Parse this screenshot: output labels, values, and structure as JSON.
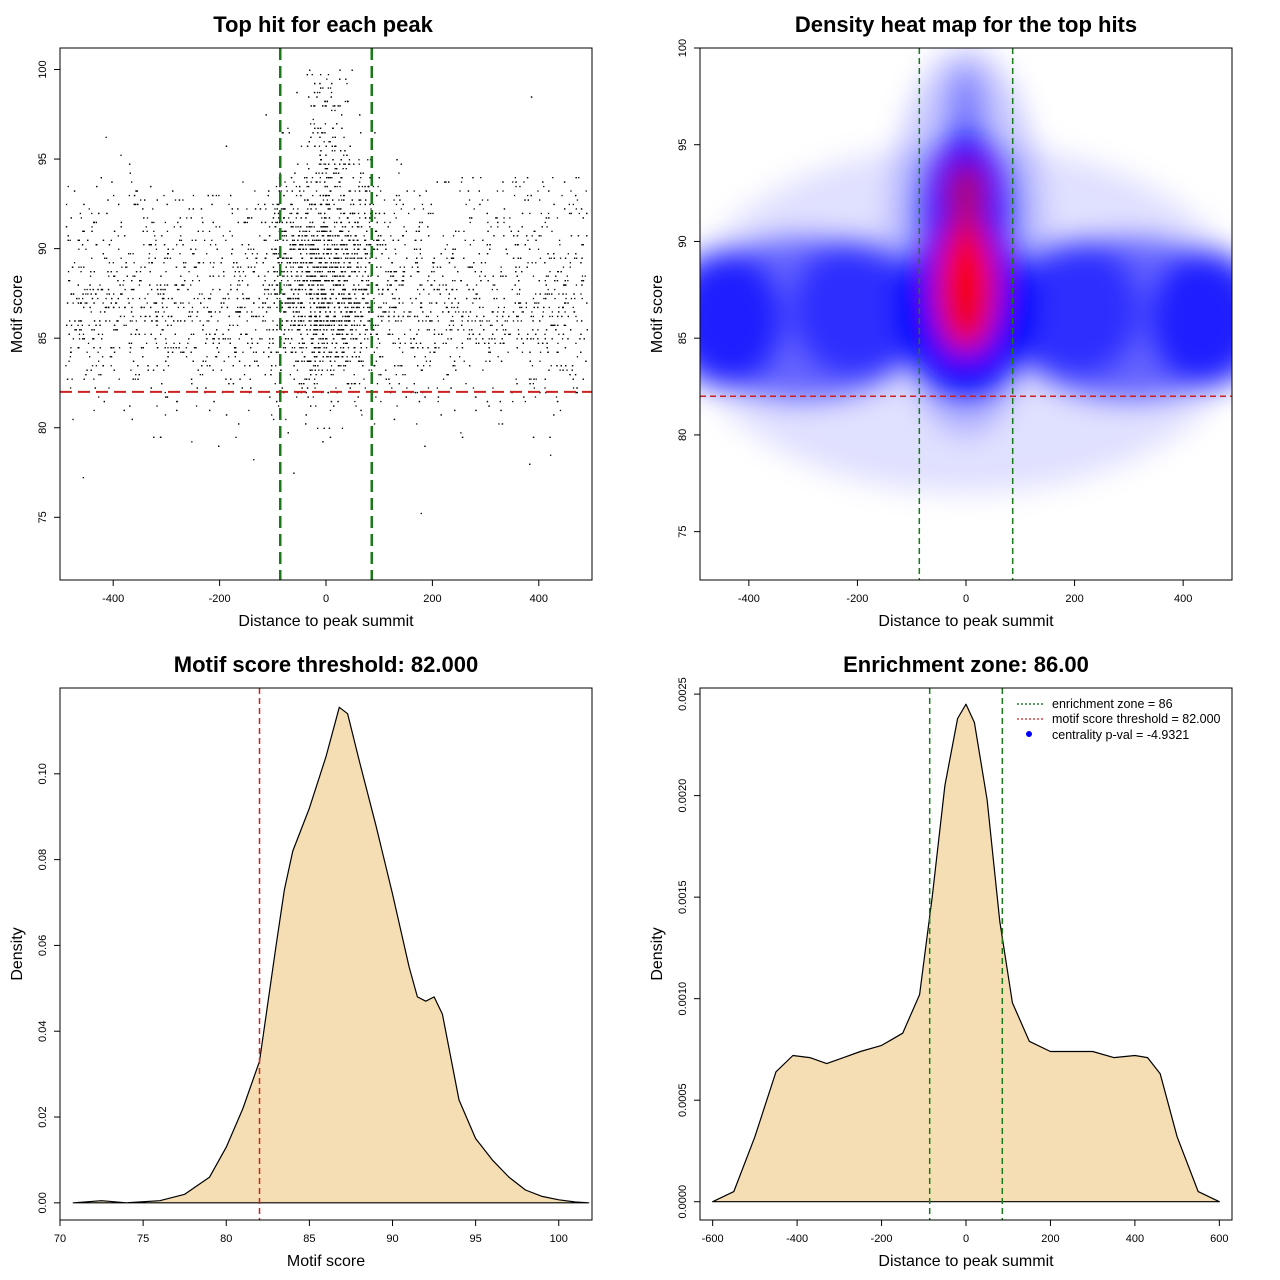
{
  "chart_data": [
    {
      "type": "scatter",
      "title": "Top hit for each peak",
      "xlabel": "Distance to peak summit",
      "ylabel": "Motif score",
      "xlim": [
        -500,
        500
      ],
      "ylim": [
        71.5,
        101.2
      ],
      "x_ticks": [
        -400,
        -200,
        0,
        200,
        400
      ],
      "y_ticks": [
        75,
        80,
        85,
        90,
        95,
        100
      ],
      "threshold_y": 82,
      "zone_x": [
        -86,
        86
      ],
      "point_count_estimate": 5000,
      "distribution": "dense band around motif score 84-89 across the full distance range, with a denser vertical column near distance 0 reaching up to 100"
    },
    {
      "type": "heatmap",
      "title": "Density heat map for the top hits",
      "xlabel": "Distance to peak summit",
      "ylabel": "Motif score",
      "xlim": [
        -490,
        490
      ],
      "ylim": [
        72.5,
        100
      ],
      "x_ticks": [
        -400,
        -200,
        0,
        200,
        400
      ],
      "y_ticks": [
        75,
        80,
        85,
        90,
        95,
        100
      ],
      "threshold_y": 82,
      "zone_x": [
        -86,
        86
      ],
      "colors": [
        "#ffffff",
        "#0000ff",
        "#ff0000"
      ],
      "hotspots": [
        {
          "x": 0,
          "y": 87.5,
          "level": "highest"
        },
        {
          "x": 0,
          "y": 92.5,
          "level": "high"
        },
        {
          "x": -450,
          "y": 86,
          "level": "medium"
        },
        {
          "x": 450,
          "y": 86,
          "level": "medium"
        }
      ]
    },
    {
      "type": "area",
      "title": "Motif score threshold: 82.000",
      "xlabel": "Motif score",
      "ylabel": "Density",
      "xlim": [
        70,
        102
      ],
      "ylim": [
        -0.004,
        0.12
      ],
      "x_ticks": [
        70,
        75,
        80,
        85,
        90,
        95,
        100
      ],
      "y_ticks": [
        0.0,
        0.02,
        0.04,
        0.06,
        0.08,
        0.1
      ],
      "y_tick_labels": [
        "0.00",
        "0.02",
        "0.04",
        "0.06",
        "0.08",
        "0.10"
      ],
      "threshold_x": 82,
      "fill": "#f5deb3",
      "points": [
        [
          70.8,
          0.0
        ],
        [
          72.5,
          0.0005
        ],
        [
          74,
          0.0
        ],
        [
          76,
          0.0005
        ],
        [
          77.5,
          0.002
        ],
        [
          79,
          0.006
        ],
        [
          80,
          0.013
        ],
        [
          81,
          0.022
        ],
        [
          82,
          0.033
        ],
        [
          83,
          0.06
        ],
        [
          83.5,
          0.073
        ],
        [
          84,
          0.082
        ],
        [
          85,
          0.092
        ],
        [
          86,
          0.104
        ],
        [
          86.8,
          0.1155
        ],
        [
          87.3,
          0.114
        ],
        [
          88,
          0.103
        ],
        [
          89,
          0.088
        ],
        [
          90,
          0.072
        ],
        [
          91,
          0.055
        ],
        [
          91.5,
          0.048
        ],
        [
          92,
          0.047
        ],
        [
          92.5,
          0.048
        ],
        [
          93,
          0.044
        ],
        [
          94,
          0.024
        ],
        [
          95,
          0.015
        ],
        [
          96,
          0.01
        ],
        [
          97,
          0.006
        ],
        [
          98,
          0.003
        ],
        [
          99,
          0.0015
        ],
        [
          100,
          0.0007
        ],
        [
          101,
          0.0002
        ],
        [
          101.8,
          0.0
        ]
      ]
    },
    {
      "type": "area",
      "title": "Enrichment zone: 86.00",
      "xlabel": "Distance to peak summit",
      "ylabel": "Density",
      "xlim": [
        -630,
        630
      ],
      "ylim": [
        -9e-05,
        0.00253
      ],
      "x_ticks": [
        -600,
        -400,
        -200,
        0,
        200,
        400,
        600
      ],
      "y_ticks": [
        0.0,
        0.0005,
        0.001,
        0.0015,
        0.002,
        0.0025
      ],
      "y_tick_labels": [
        "0.0000",
        "0.0005",
        "0.0010",
        "0.0015",
        "0.0020",
        "0.0025"
      ],
      "zone_x": [
        -86,
        86
      ],
      "fill": "#f5deb3",
      "legend_position": "top-right",
      "legend": [
        {
          "label": "enrichment zone = 86",
          "color": "#006400",
          "style": "dotted"
        },
        {
          "label": "motif score threshold = 82.000",
          "color": "#cc2222",
          "style": "dotted"
        },
        {
          "label": "centrality p-val = -4.9321",
          "color": "#0000ff",
          "style": "point"
        }
      ],
      "points": [
        [
          -600,
          0.0
        ],
        [
          -550,
          5e-05
        ],
        [
          -500,
          0.00032
        ],
        [
          -450,
          0.00064
        ],
        [
          -410,
          0.00072
        ],
        [
          -370,
          0.00071
        ],
        [
          -330,
          0.00068
        ],
        [
          -290,
          0.00071
        ],
        [
          -250,
          0.00074
        ],
        [
          -200,
          0.00077
        ],
        [
          -150,
          0.00083
        ],
        [
          -110,
          0.00102
        ],
        [
          -80,
          0.0015
        ],
        [
          -50,
          0.00205
        ],
        [
          -20,
          0.00238
        ],
        [
          0,
          0.00245
        ],
        [
          20,
          0.00236
        ],
        [
          50,
          0.00198
        ],
        [
          80,
          0.00138
        ],
        [
          110,
          0.00098
        ],
        [
          150,
          0.00079
        ],
        [
          200,
          0.00074
        ],
        [
          250,
          0.00074
        ],
        [
          300,
          0.00074
        ],
        [
          350,
          0.00071
        ],
        [
          400,
          0.00072
        ],
        [
          430,
          0.00071
        ],
        [
          460,
          0.00063
        ],
        [
          500,
          0.00032
        ],
        [
          550,
          5e-05
        ],
        [
          600,
          0.0
        ]
      ]
    }
  ]
}
